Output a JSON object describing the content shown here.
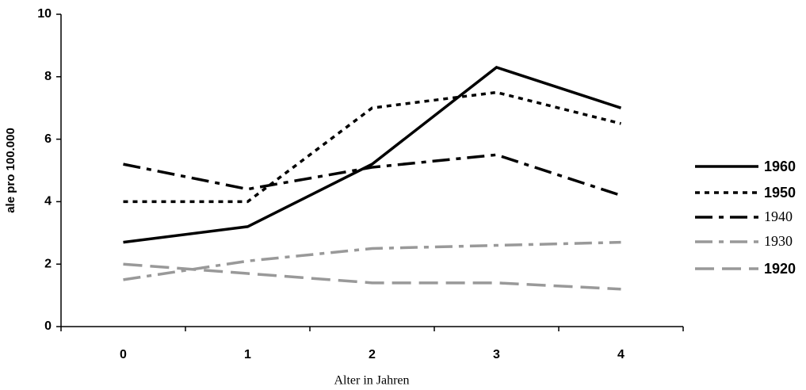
{
  "chart_data": {
    "type": "line",
    "x_label": "Alter in Jahren",
    "y_label": "ale pro 100.000",
    "categories": [
      "0",
      "1",
      "2",
      "3",
      "4"
    ],
    "ylim": [
      0,
      10
    ],
    "yticks": [
      0,
      2,
      4,
      6,
      8,
      10
    ],
    "series": [
      {
        "name": "1960",
        "color": "#000000",
        "dash": "solid",
        "values": [
          2.7,
          3.2,
          5.2,
          8.3,
          7.0
        ]
      },
      {
        "name": "1950",
        "color": "#000000",
        "dash": "dot",
        "values": [
          4.0,
          4.0,
          7.0,
          7.5,
          6.5
        ]
      },
      {
        "name": "1940",
        "color": "#000000",
        "dash": "dashdot",
        "values": [
          5.2,
          4.4,
          5.1,
          5.5,
          4.2
        ]
      },
      {
        "name": "1930",
        "color": "#999999",
        "dash": "dashdot",
        "values": [
          1.5,
          2.1,
          2.5,
          2.6,
          2.7
        ]
      },
      {
        "name": "1920",
        "color": "#999999",
        "dash": "dash",
        "values": [
          2.0,
          1.7,
          1.4,
          1.4,
          1.2
        ]
      }
    ]
  }
}
